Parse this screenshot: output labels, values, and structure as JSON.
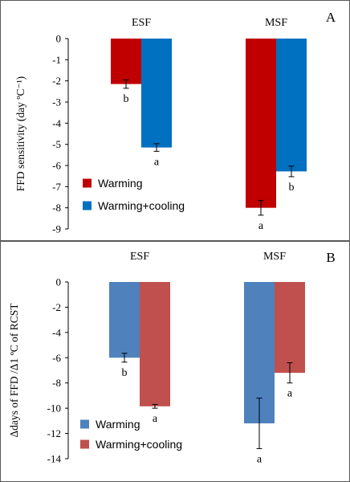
{
  "chart_data": [
    {
      "panel_label": "A",
      "type": "bar",
      "categories": [
        "ESF",
        "MSF"
      ],
      "ylabel": "FFD  sensitivity (day ºC⁻¹)",
      "ylim": [
        -9,
        0
      ],
      "yticks": [
        0,
        -1,
        -2,
        -3,
        -4,
        -5,
        -6,
        -7,
        -8,
        -9
      ],
      "ytick_labels": [
        "0",
        "-1",
        "-2",
        "-3",
        "-4",
        "-5",
        "-6",
        "-7",
        "-8",
        "-9"
      ],
      "grid": false,
      "legend_position": "bottom-left",
      "series": [
        {
          "name": "Warming",
          "color": "#c00000",
          "values": [
            -2.15,
            -8.0
          ],
          "errors": [
            0.2,
            0.35
          ],
          "letters": [
            "b",
            "a"
          ]
        },
        {
          "name": "Warming+cooling",
          "color": "#0070c0",
          "values": [
            -5.15,
            -6.28
          ],
          "errors": [
            0.18,
            0.25
          ],
          "letters": [
            "a",
            "b"
          ]
        }
      ]
    },
    {
      "panel_label": "B",
      "type": "bar",
      "categories": [
        "ESF",
        "MSF"
      ],
      "ylabel": "Δdays of FFD /Δ1 ºC of RCST",
      "ylim": [
        -14,
        0
      ],
      "yticks": [
        0,
        -2,
        -4,
        -6,
        -8,
        -10,
        -12,
        -14
      ],
      "ytick_labels": [
        "0",
        "-2",
        "-4",
        "-6",
        "-8",
        "-10",
        "-12",
        "-14"
      ],
      "grid": false,
      "legend_position": "bottom-left",
      "series": [
        {
          "name": "Warming",
          "color": "#4f81bd",
          "values": [
            -6.0,
            -11.2
          ],
          "errors": [
            0.35,
            2.0
          ],
          "letters": [
            "b",
            "a"
          ]
        },
        {
          "name": "Warming+cooling",
          "color": "#c0504d",
          "values": [
            -9.85,
            -7.2
          ],
          "errors": [
            0.15,
            0.8
          ],
          "letters": [
            "a",
            "a"
          ]
        }
      ]
    }
  ]
}
